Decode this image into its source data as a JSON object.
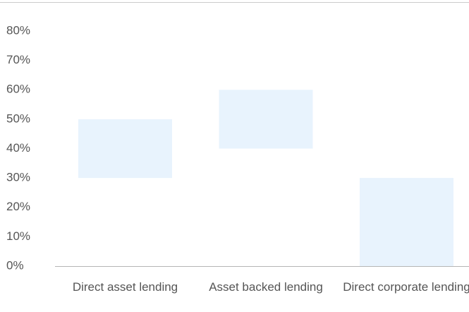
{
  "chart_data": {
    "type": "floating_bar",
    "categories": [
      "Direct asset lending",
      "Asset backed lending",
      "Direct corporate lending"
    ],
    "values": [
      [
        30,
        50
      ],
      [
        40,
        60
      ],
      [
        0,
        30
      ]
    ],
    "color": "#e8f3fd",
    "ylim": [
      0,
      80
    ],
    "yticks": [
      {
        "value": 0,
        "label": "0%"
      },
      {
        "value": 10,
        "label": "10%"
      },
      {
        "value": 20,
        "label": "20%"
      },
      {
        "value": 30,
        "label": "30%"
      },
      {
        "value": 40,
        "label": "40%"
      },
      {
        "value": 50,
        "label": "50%"
      },
      {
        "value": 60,
        "label": "60%"
      },
      {
        "value": 70,
        "label": "70%"
      },
      {
        "value": 80,
        "label": "80%"
      }
    ],
    "grid": false
  }
}
